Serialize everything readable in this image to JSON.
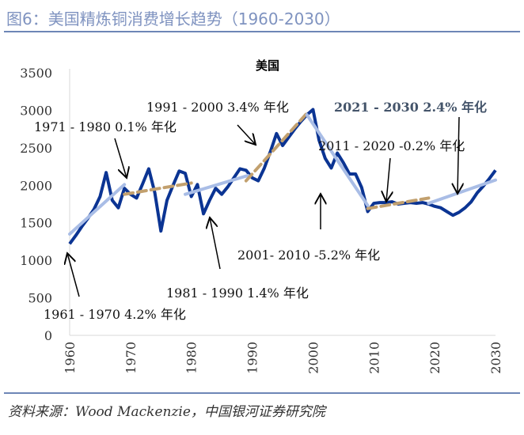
{
  "figure_title": "图6：美国精炼铜消费增长趋势（1960-2030）",
  "source": "资料来源：Wood Mackenzie，中国银河证券研究院",
  "chart_data": {
    "type": "line",
    "title": "美国",
    "xlim": [
      1960,
      2030
    ],
    "ylim": [
      0,
      3500
    ],
    "y_ticks": [
      "0",
      "500",
      "1000",
      "1500",
      "2000",
      "2500",
      "3000",
      "3500"
    ],
    "x_ticks": [
      "1960",
      "1970",
      "1980",
      "1990",
      "2000",
      "2010",
      "2020",
      "2030"
    ],
    "grid": false,
    "colors": {
      "actual": "#0b3493",
      "trend_light": "#a9bde6",
      "trend_tan": "#c2a06e",
      "highlight_text": "#44546a"
    },
    "series": [
      {
        "x": [
          1960,
          1961,
          1962,
          1963,
          1964,
          1965,
          1966,
          1967,
          1968,
          1969,
          1970,
          1971,
          1972,
          1973,
          1974,
          1975,
          1976,
          1977,
          1978,
          1979,
          1980,
          1981,
          1982,
          1983,
          1984,
          1985,
          1986,
          1987,
          1988,
          1989,
          1990,
          1991,
          1992,
          1993,
          1994,
          1995,
          1996,
          1997,
          1998,
          1999,
          2000,
          2001,
          2002,
          2003,
          2004,
          2005,
          2006,
          2007,
          2008,
          2009,
          2010,
          2011,
          2012,
          2013,
          2014,
          2015,
          2016,
          2017,
          2018,
          2019,
          2020,
          2021,
          2022,
          2023,
          2024,
          2025,
          2026,
          2027,
          2028,
          2029,
          2030
        ],
        "values": [
          1220,
          1330,
          1450,
          1560,
          1680,
          1850,
          2170,
          1800,
          1700,
          1960,
          1880,
          1830,
          2020,
          2220,
          1900,
          1390,
          1800,
          2000,
          2190,
          2160,
          1850,
          2010,
          1620,
          1800,
          1960,
          1880,
          1980,
          2100,
          2220,
          2200,
          2100,
          2060,
          2230,
          2450,
          2690,
          2530,
          2640,
          2750,
          2850,
          2940,
          3010,
          2600,
          2360,
          2230,
          2430,
          2300,
          2150,
          2150,
          1970,
          1650,
          1760,
          1770,
          1770,
          1780,
          1750,
          1760,
          1770,
          1760,
          1770,
          1750,
          1720,
          1700,
          1650,
          1600,
          1640,
          1700,
          1780,
          1900,
          1990,
          2090,
          2200
        ]
      }
    ],
    "trends": [
      {
        "period": "1961 - 1970",
        "style": "light",
        "x": [
          1960,
          1969
        ],
        "y": [
          1350,
          2010
        ]
      },
      {
        "period": "1971 - 1980",
        "style": "tan-dashed",
        "x": [
          1969,
          1980
        ],
        "y": [
          1880,
          2030
        ]
      },
      {
        "period": "1981 - 1990",
        "style": "light",
        "x": [
          1979,
          1989.3
        ],
        "y": [
          1880,
          2130
        ]
      },
      {
        "period": "1991 - 2000",
        "style": "tan-dashed",
        "x": [
          1989,
          1999
        ],
        "y": [
          2060,
          2960
        ]
      },
      {
        "period": "2001 - 2010",
        "style": "light",
        "x": [
          1999,
          2009
        ],
        "y": [
          2940,
          1730
        ]
      },
      {
        "period": "2011 - 2020",
        "style": "tan-dashed",
        "x": [
          2009,
          2019
        ],
        "y": [
          1690,
          1830
        ]
      },
      {
        "period": "2021 - 2030",
        "style": "light",
        "x": [
          2019,
          2030
        ],
        "y": [
          1760,
          2070
        ]
      }
    ],
    "annotations": [
      "1971 - 1980 0.1% 年化",
      "1991 - 2000 3.4% 年化",
      "2021 - 2030 2.4% 年化",
      "2011 - 2020 -0.2% 年化",
      "2001- 2010 -5.2% 年化",
      "1981 - 1990 1.4% 年化",
      "1961 - 1970 4.2% 年化"
    ]
  }
}
